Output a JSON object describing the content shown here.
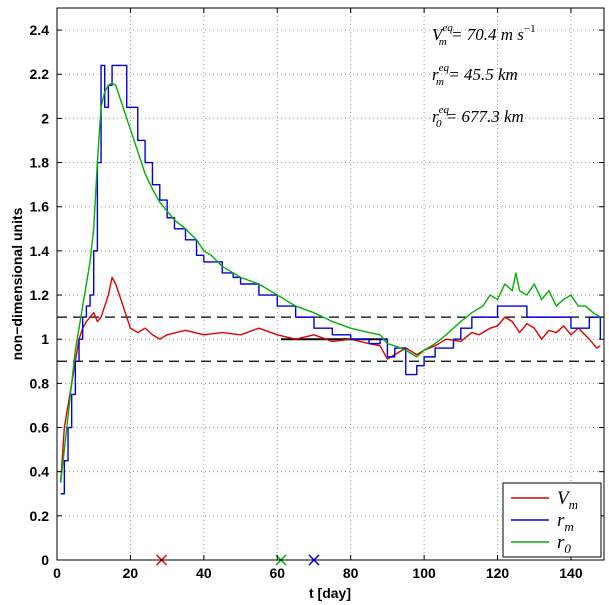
{
  "chart_data": {
    "type": "line",
    "title": "",
    "xlabel": "t [day]",
    "ylabel": "non−dimensional units",
    "xlim": [
      0,
      149
    ],
    "ylim": [
      0,
      2.5
    ],
    "xticks": [
      0,
      20,
      40,
      60,
      80,
      100,
      120,
      140
    ],
    "yticks": [
      0,
      0.2,
      0.4,
      0.6,
      0.8,
      1,
      1.2,
      1.4,
      1.6,
      1.8,
      2,
      2.2,
      2.4
    ],
    "xtick_labels": [
      "0",
      "20",
      "40",
      "60",
      "80",
      "100",
      "120",
      "140"
    ],
    "ytick_labels": [
      "0",
      "0.2",
      "0.4",
      "0.6",
      "0.8",
      "1",
      "1.2",
      "1.4",
      "1.6",
      "1.8",
      "2",
      "2.2",
      "2.4"
    ],
    "grid": true,
    "legend_position": "bottom-right",
    "annotations": [
      {
        "base": "V",
        "sub": "m",
        "sup": "eq",
        "rest": " = 70.4 m s",
        "unit_sup": "−1"
      },
      {
        "base": "r",
        "sub": "m",
        "sup": "eq",
        "rest": " = 45.5 km",
        "unit_sup": ""
      },
      {
        "base": "r",
        "sub": "0",
        "sup": "eq",
        "rest": " = 677.3 km",
        "unit_sup": ""
      }
    ],
    "reference_lines": [
      {
        "y": 1.1,
        "style": "dashed",
        "color": "#000000"
      },
      {
        "y": 0.9,
        "style": "dashed",
        "color": "#000000"
      },
      {
        "y": 1.0,
        "x": [
          61,
          90
        ],
        "style": "solid",
        "color": "#000000"
      }
    ],
    "markers": [
      {
        "x": 28.5,
        "y": 0,
        "symbol": "x",
        "color": "#e00000"
      },
      {
        "x": 61,
        "y": 0,
        "symbol": "x",
        "color": "#00b000"
      },
      {
        "x": 70,
        "y": 0,
        "symbol": "x",
        "color": "#0000e0"
      }
    ],
    "series": [
      {
        "name": "V",
        "name_sub": "m",
        "color": "#e00000",
        "step": false,
        "x": [
          1,
          2,
          3,
          4,
          5,
          6,
          7,
          8,
          9,
          10,
          11,
          12,
          13,
          14,
          15,
          16,
          17,
          18,
          19,
          20,
          22,
          24,
          26,
          28,
          30,
          35,
          40,
          45,
          50,
          55,
          60,
          65,
          70,
          75,
          80,
          85,
          88,
          90,
          92,
          95,
          98,
          100,
          103,
          106,
          110,
          113,
          115,
          118,
          120,
          122,
          124,
          126,
          128,
          130,
          132,
          134,
          136,
          138,
          140,
          142,
          145,
          147,
          148
        ],
        "y": [
          0.35,
          0.6,
          0.7,
          0.8,
          0.9,
          1.0,
          1.05,
          1.08,
          1.1,
          1.12,
          1.08,
          1.1,
          1.15,
          1.2,
          1.28,
          1.25,
          1.2,
          1.15,
          1.1,
          1.05,
          1.03,
          1.05,
          1.02,
          1.0,
          1.02,
          1.04,
          1.02,
          1.03,
          1.02,
          1.05,
          1.02,
          1.0,
          1.02,
          0.99,
          1.0,
          0.98,
          0.97,
          0.91,
          0.93,
          0.96,
          0.93,
          0.95,
          0.97,
          1.0,
          0.99,
          1.03,
          1.02,
          1.05,
          1.06,
          1.1,
          1.08,
          1.03,
          1.07,
          1.05,
          1.0,
          1.04,
          1.03,
          1.06,
          1.02,
          1.05,
          1.0,
          0.96,
          0.97
        ]
      },
      {
        "name": "r",
        "name_sub": "m",
        "color": "#0000e0",
        "step": true,
        "x": [
          1,
          2,
          3,
          4,
          5,
          6,
          7,
          8,
          9,
          10,
          11,
          12,
          13,
          14,
          15,
          16,
          19,
          22,
          24,
          26,
          28,
          30,
          32,
          35,
          38,
          40,
          45,
          48,
          50,
          55,
          60,
          65,
          70,
          75,
          80,
          85,
          88,
          90,
          92,
          95,
          98,
          100,
          103,
          108,
          110,
          113,
          116,
          120,
          125,
          128,
          130,
          135,
          140,
          145,
          147,
          148
        ],
        "y": [
          0.3,
          0.45,
          0.6,
          0.75,
          0.9,
          1.0,
          1.1,
          1.15,
          1.2,
          1.4,
          1.8,
          2.24,
          2.05,
          2.15,
          2.24,
          2.24,
          2.05,
          1.9,
          1.8,
          1.7,
          1.63,
          1.55,
          1.5,
          1.45,
          1.38,
          1.35,
          1.3,
          1.28,
          1.25,
          1.2,
          1.15,
          1.1,
          1.05,
          1.02,
          1.0,
          0.98,
          1.0,
          0.92,
          0.96,
          0.84,
          0.88,
          0.92,
          0.96,
          1.0,
          1.05,
          1.1,
          1.1,
          1.15,
          1.15,
          1.1,
          1.1,
          1.1,
          1.05,
          1.1,
          1.1,
          1.0
        ]
      },
      {
        "name": "r",
        "name_sub": "0",
        "color": "#00b000",
        "step": false,
        "x": [
          1,
          2,
          3,
          4,
          5,
          6,
          7,
          8,
          9,
          10,
          11,
          12,
          13,
          14,
          15,
          16,
          17,
          18,
          20,
          22,
          24,
          26,
          28,
          30,
          32,
          35,
          38,
          40,
          42,
          45,
          48,
          50,
          55,
          60,
          65,
          70,
          75,
          80,
          85,
          88,
          90,
          92,
          95,
          98,
          100,
          103,
          106,
          110,
          113,
          116,
          118,
          120,
          122,
          124,
          125,
          126,
          128,
          130,
          132,
          134,
          136,
          138,
          140,
          142,
          144,
          146,
          148
        ],
        "y": [
          0.35,
          0.5,
          0.65,
          0.8,
          0.95,
          1.05,
          1.15,
          1.25,
          1.35,
          1.5,
          1.8,
          2.05,
          2.12,
          2.15,
          2.16,
          2.15,
          2.1,
          2.05,
          1.95,
          1.85,
          1.75,
          1.68,
          1.62,
          1.58,
          1.54,
          1.5,
          1.45,
          1.4,
          1.38,
          1.33,
          1.3,
          1.28,
          1.25,
          1.2,
          1.15,
          1.12,
          1.08,
          1.05,
          1.03,
          1.02,
          0.98,
          0.97,
          0.95,
          0.92,
          0.95,
          0.98,
          1.02,
          1.08,
          1.12,
          1.15,
          1.2,
          1.18,
          1.25,
          1.22,
          1.3,
          1.22,
          1.2,
          1.25,
          1.18,
          1.22,
          1.15,
          1.18,
          1.2,
          1.15,
          1.15,
          1.12,
          1.1
        ]
      }
    ]
  }
}
